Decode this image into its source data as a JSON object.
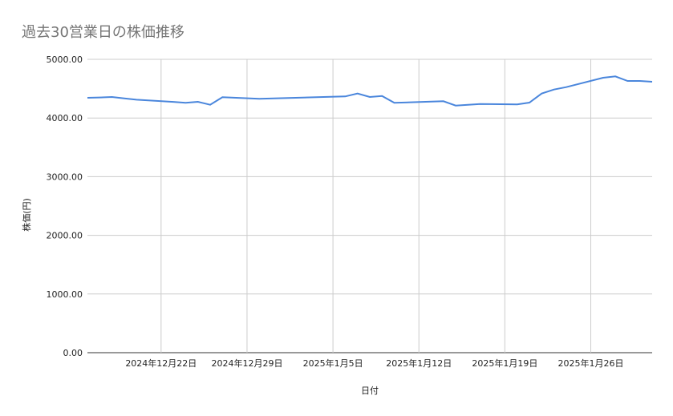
{
  "chart_data": {
    "type": "line",
    "title": "過去30営業日の株価推移",
    "xlabel": "日付",
    "ylabel": "株価(円)",
    "ylim": [
      0,
      5000
    ],
    "yticks": [
      "0.00",
      "1000.00",
      "2000.00",
      "3000.00",
      "4000.00",
      "5000.00"
    ],
    "xtick_dates": [
      "2024-12-22",
      "2024-12-29",
      "2025-01-05",
      "2025-01-12",
      "2025-01-19",
      "2025-01-26"
    ],
    "xtick_labels": [
      "2024年12月22日",
      "2024年12月29日",
      "2025年1月5日",
      "2025年1月12日",
      "2025年1月19日",
      "2025年1月26日"
    ],
    "xlim": [
      "2024-12-16",
      "2025-01-31"
    ],
    "grid": true,
    "line_color": "#4a86dc",
    "series": [
      {
        "x": [
          "2024-12-16",
          "2024-12-17",
          "2024-12-18",
          "2024-12-19",
          "2024-12-20",
          "2024-12-23",
          "2024-12-24",
          "2024-12-25",
          "2024-12-26",
          "2024-12-27",
          "2024-12-30",
          "2025-01-06",
          "2025-01-07",
          "2025-01-08",
          "2025-01-09",
          "2025-01-10",
          "2025-01-14",
          "2025-01-15",
          "2025-01-16",
          "2025-01-17",
          "2025-01-20",
          "2025-01-21",
          "2025-01-22",
          "2025-01-23",
          "2025-01-24",
          "2025-01-27",
          "2025-01-28",
          "2025-01-29",
          "2025-01-30",
          "2025-01-31"
        ],
        "values": [
          4344,
          4350,
          4358,
          4335,
          4312,
          4275,
          4258,
          4276,
          4225,
          4354,
          4326,
          4367,
          4417,
          4358,
          4375,
          4258,
          4286,
          4212,
          4226,
          4239,
          4231,
          4262,
          4417,
          4485,
          4526,
          4686,
          4709,
          4631,
          4631,
          4617
        ]
      }
    ]
  }
}
